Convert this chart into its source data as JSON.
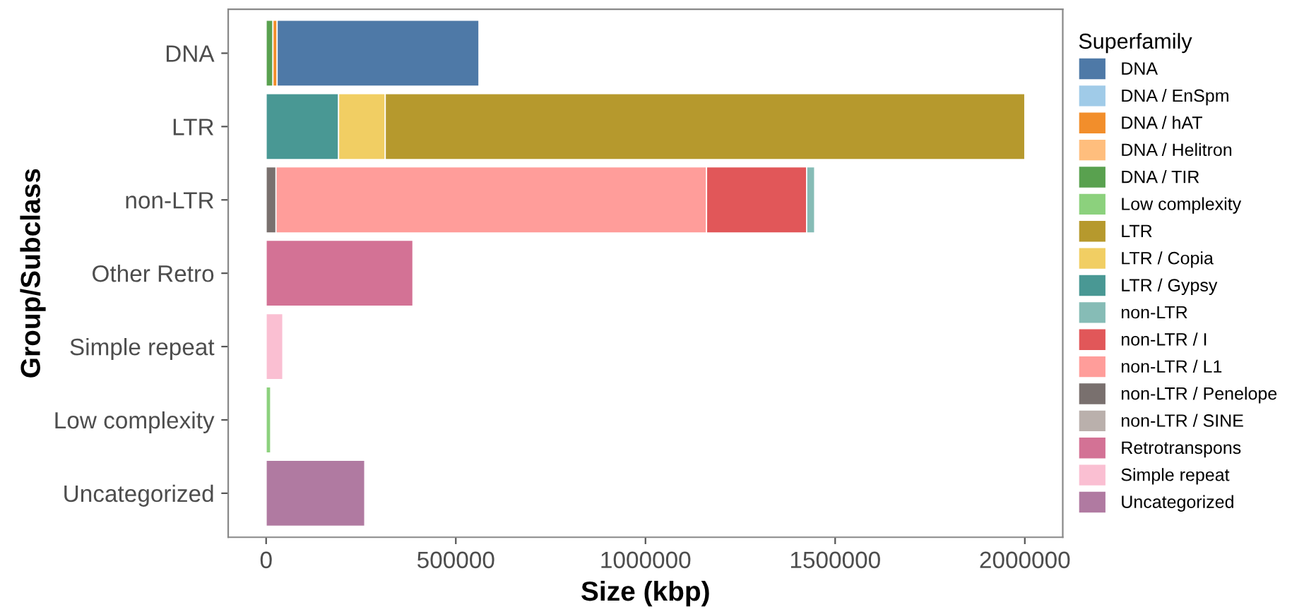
{
  "chart_data": {
    "type": "bar",
    "orientation": "horizontal",
    "stacked": true,
    "xlabel": "Size (kbp)",
    "ylabel": "Group/Subclass",
    "legend_title": "Superfamily",
    "legend": "right",
    "grid": false,
    "categories": [
      "DNA",
      "LTR",
      "non-LTR",
      "Other Retro",
      "Simple repeat",
      "Low complexity",
      "Uncategorized"
    ],
    "xlim": [
      -100000,
      2100000
    ],
    "xticks": [
      0,
      500000,
      1000000,
      1500000,
      2000000
    ],
    "series": [
      {
        "name": "Uncategorized",
        "color": "#b07aa1",
        "values": [
          null,
          null,
          null,
          null,
          null,
          null,
          260000
        ]
      },
      {
        "name": "Simple repeat",
        "color": "#fabfd2",
        "values": [
          null,
          null,
          null,
          null,
          44000,
          null,
          null
        ]
      },
      {
        "name": "Retrotranspons",
        "color": "#d37295",
        "values": [
          null,
          null,
          null,
          387000,
          null,
          null,
          null
        ]
      },
      {
        "name": "non-LTR / SINE",
        "color": "#bab0ac",
        "values": [
          null,
          null,
          null,
          null,
          null,
          null,
          null
        ]
      },
      {
        "name": "non-LTR / Penelope",
        "color": "#79706e",
        "values": [
          null,
          null,
          26000,
          null,
          null,
          null,
          null
        ]
      },
      {
        "name": "non-LTR / L1",
        "color": "#ff9d9a",
        "values": [
          null,
          null,
          1135000,
          null,
          null,
          null,
          null
        ]
      },
      {
        "name": "non-LTR / I",
        "color": "#e15759",
        "values": [
          null,
          null,
          264000,
          null,
          null,
          null,
          null
        ]
      },
      {
        "name": "non-LTR",
        "color": "#86bcb6",
        "values": [
          null,
          null,
          21000,
          null,
          null,
          null,
          null
        ]
      },
      {
        "name": "LTR / Gypsy",
        "color": "#499894",
        "values": [
          null,
          191000,
          null,
          null,
          null,
          null,
          null
        ]
      },
      {
        "name": "LTR / Copia",
        "color": "#f1ce63",
        "values": [
          null,
          123000,
          null,
          null,
          null,
          null,
          null
        ]
      },
      {
        "name": "LTR",
        "color": "#b6992d",
        "values": [
          null,
          1686000,
          null,
          null,
          null,
          null,
          null
        ]
      },
      {
        "name": "Low complexity",
        "color": "#8cd17d",
        "values": [
          null,
          null,
          null,
          null,
          null,
          12000,
          null
        ]
      },
      {
        "name": "DNA / TIR",
        "color": "#59a14f",
        "values": [
          18000,
          null,
          null,
          null,
          null,
          null,
          null
        ]
      },
      {
        "name": "DNA / Helitron",
        "color": "#ffbe7d",
        "values": [
          null,
          null,
          null,
          null,
          null,
          null,
          null
        ]
      },
      {
        "name": "DNA / hAT",
        "color": "#f28e2b",
        "values": [
          11000,
          null,
          null,
          null,
          null,
          null,
          null
        ]
      },
      {
        "name": "DNA / EnSpm",
        "color": "#a0cbe8",
        "values": [
          null,
          null,
          null,
          null,
          null,
          null,
          null
        ]
      },
      {
        "name": "DNA",
        "color": "#4e79a7",
        "values": [
          532000,
          null,
          null,
          null,
          null,
          null,
          null
        ]
      }
    ]
  }
}
